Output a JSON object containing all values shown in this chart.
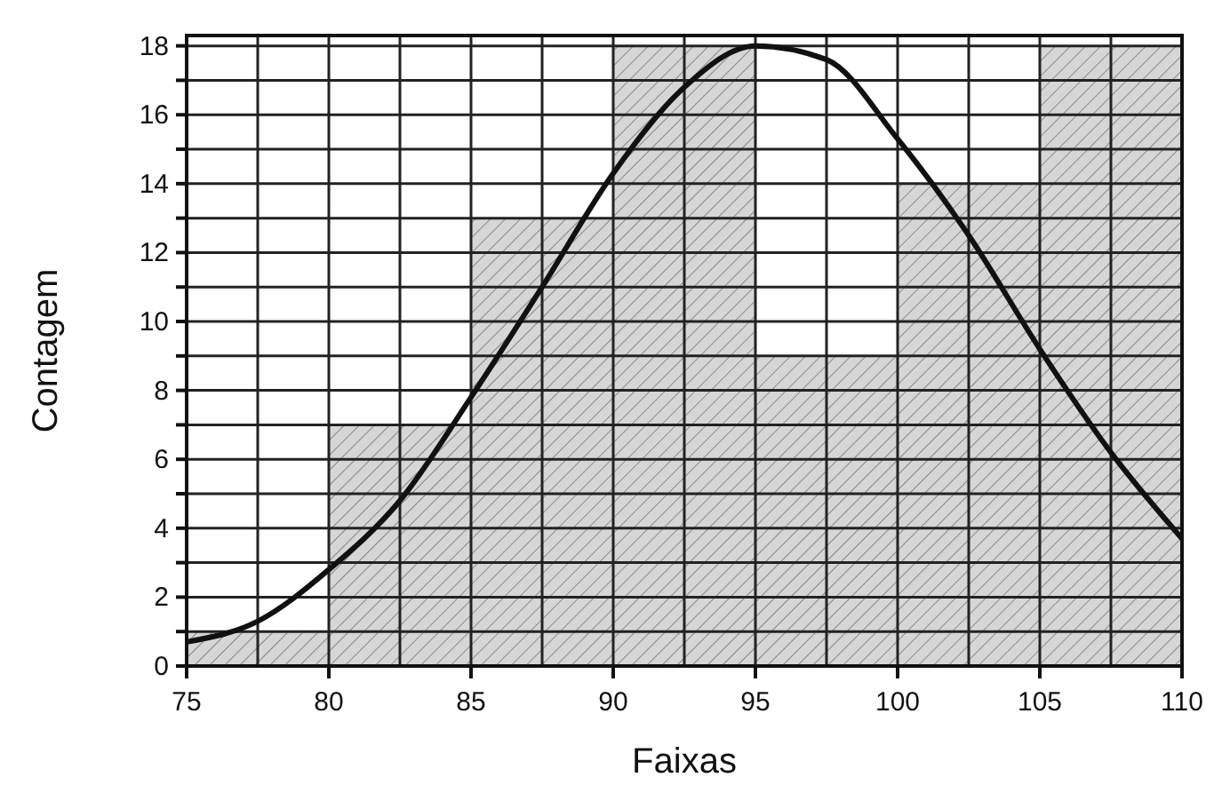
{
  "chart_data": {
    "type": "histogram",
    "xlabel": "Faixas",
    "ylabel": "Contagem",
    "bins": [
      75,
      80,
      85,
      90,
      95,
      100,
      105,
      110
    ],
    "values": [
      1,
      7,
      13,
      18,
      9,
      14,
      18
    ],
    "color": "#d6d6d6",
    "series": [
      {
        "type": "line",
        "color": "#111111",
        "x": [
          75,
          77.5,
          80,
          82.5,
          85,
          87.5,
          90,
          92.5,
          95,
          97.5,
          100,
          102.5,
          105,
          107.5,
          110
        ],
        "values": [
          0.7,
          1.3,
          2.8,
          4.8,
          7.8,
          11,
          14.3,
          16.8,
          18,
          17.6,
          15.3,
          12.5,
          9.2,
          6.2,
          3.7
        ]
      }
    ],
    "xlim": [
      75,
      110
    ],
    "ylim": [
      0,
      18.3
    ],
    "xticks": [
      75,
      {
        "value": 77.5,
        "label": null
      },
      80,
      {
        "value": 82.5,
        "label": null
      },
      85,
      {
        "value": 87.5,
        "label": null
      },
      90,
      {
        "value": 92.5,
        "label": null
      },
      95,
      {
        "value": 97.5,
        "label": null
      },
      100,
      {
        "value": 102.5,
        "label": null
      },
      105,
      {
        "value": 107.5,
        "label": null
      },
      110
    ],
    "yticks": [
      0,
      {
        "value": 1,
        "label": null
      },
      2,
      {
        "value": 3,
        "label": null
      },
      4,
      {
        "value": 5,
        "label": null
      },
      6,
      {
        "value": 7,
        "label": null
      },
      8,
      {
        "value": 9,
        "label": null
      },
      10,
      {
        "value": 11,
        "label": null
      },
      12,
      {
        "value": 13,
        "label": null
      },
      14,
      {
        "value": 15,
        "label": null
      },
      16,
      {
        "value": 17,
        "label": null
      },
      18
    ],
    "grid": true,
    "line_style": "solid",
    "marker": "none"
  }
}
